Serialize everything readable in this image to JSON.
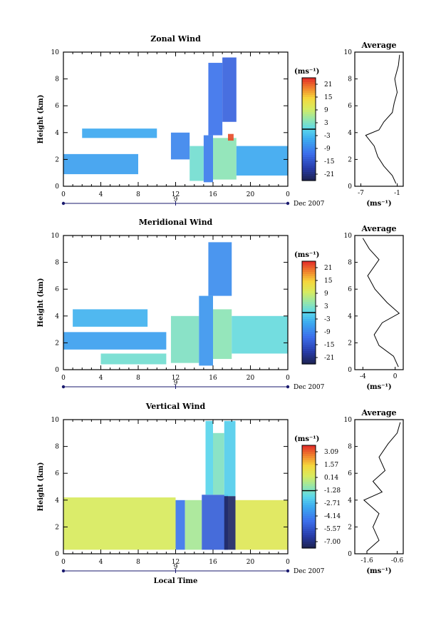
{
  "chart_data": [
    {
      "type": "heatmap",
      "title": "Zonal Wind",
      "xlabel": "",
      "ylabel": "Height (km)",
      "xticks": [
        "0",
        "4",
        "8",
        "12",
        "16",
        "20",
        "0"
      ],
      "xlim": [
        0,
        24
      ],
      "yticks": [
        "0",
        "2",
        "4",
        "6",
        "8",
        "10"
      ],
      "ylim": [
        0,
        10
      ],
      "day_label": "9",
      "date_label": "Dec 2007",
      "colorbar": {
        "unit": "(ms⁻¹)",
        "ticks": [
          "21",
          "15",
          "9",
          "3",
          "-3",
          "-9",
          "-15",
          "-21"
        ],
        "range": [
          -24,
          24
        ],
        "zero_line": 0
      },
      "cells": [
        {
          "x0": 0,
          "x1": 8,
          "y0": 0.9,
          "y1": 2.4,
          "v": -6
        },
        {
          "x0": 2,
          "x1": 10,
          "y0": 3.6,
          "y1": 4.3,
          "v": -5
        },
        {
          "x0": 11.5,
          "x1": 13.5,
          "y0": 2.0,
          "y1": 4.0,
          "v": -9
        },
        {
          "x0": 13.5,
          "x1": 15,
          "y0": 0.4,
          "y1": 3.0,
          "v": 2
        },
        {
          "x0": 15,
          "x1": 16,
          "y0": 0.3,
          "y1": 3.8,
          "v": -10
        },
        {
          "x0": 16,
          "x1": 18.5,
          "y0": 0.5,
          "y1": 3.6,
          "v": 4
        },
        {
          "x0": 15.5,
          "x1": 17,
          "y0": 3.8,
          "y1": 9.2,
          "v": -11
        },
        {
          "x0": 17,
          "x1": 18.5,
          "y0": 4.8,
          "y1": 9.6,
          "v": -13
        },
        {
          "x0": 17.6,
          "x1": 18.2,
          "y0": 3.4,
          "y1": 3.9,
          "v": 22
        },
        {
          "x0": 18.5,
          "x1": 24,
          "y0": 0.8,
          "y1": 3.0,
          "v": -5
        }
      ],
      "average": {
        "title": "Average",
        "xlabel": "(ms⁻¹)",
        "xticks": [
          "-7",
          "-1"
        ],
        "xlim": [
          -8,
          0
        ],
        "yticks": [
          "0",
          "2",
          "4",
          "6",
          "8",
          "10"
        ],
        "ylim": [
          0,
          10
        ],
        "profile": [
          [
            -1.2,
            0.2
          ],
          [
            -1.8,
            0.8
          ],
          [
            -3.2,
            1.5
          ],
          [
            -4.2,
            2.2
          ],
          [
            -4.8,
            3.0
          ],
          [
            -6.2,
            3.8
          ],
          [
            -4.0,
            4.2
          ],
          [
            -3.2,
            4.8
          ],
          [
            -1.8,
            5.5
          ],
          [
            -1.5,
            6.2
          ],
          [
            -1.0,
            7.0
          ],
          [
            -1.4,
            8.0
          ],
          [
            -0.8,
            9.0
          ],
          [
            -0.6,
            9.8
          ]
        ]
      }
    },
    {
      "type": "heatmap",
      "title": "Meridional Wind",
      "xlabel": "",
      "ylabel": "Height (km)",
      "xticks": [
        "0",
        "4",
        "8",
        "12",
        "16",
        "20",
        "0"
      ],
      "xlim": [
        0,
        24
      ],
      "yticks": [
        "0",
        "2",
        "4",
        "6",
        "8",
        "10"
      ],
      "ylim": [
        0,
        10
      ],
      "day_label": "9",
      "date_label": "Dec 2007",
      "colorbar": {
        "unit": "(ms⁻¹)",
        "ticks": [
          "21",
          "15",
          "9",
          "3",
          "-3",
          "-9",
          "-15",
          "-21"
        ],
        "range": [
          -24,
          24
        ],
        "zero_line": 0
      },
      "cells": [
        {
          "x0": 0,
          "x1": 11,
          "y0": 1.5,
          "y1": 2.8,
          "v": -6
        },
        {
          "x0": 1,
          "x1": 9,
          "y0": 3.2,
          "y1": 4.5,
          "v": -4
        },
        {
          "x0": 4,
          "x1": 11,
          "y0": 0.4,
          "y1": 1.2,
          "v": 2
        },
        {
          "x0": 11.5,
          "x1": 14.5,
          "y0": 0.5,
          "y1": 4.0,
          "v": 3
        },
        {
          "x0": 14.5,
          "x1": 16,
          "y0": 0.3,
          "y1": 5.5,
          "v": -7
        },
        {
          "x0": 16,
          "x1": 18,
          "y0": 0.8,
          "y1": 4.5,
          "v": 4
        },
        {
          "x0": 15.5,
          "x1": 18,
          "y0": 5.5,
          "y1": 9.5,
          "v": -8
        },
        {
          "x0": 18,
          "x1": 24,
          "y0": 1.2,
          "y1": 4.0,
          "v": 1
        }
      ],
      "average": {
        "title": "Average",
        "xlabel": "(ms⁻¹)",
        "xticks": [
          "-4",
          "0"
        ],
        "xlim": [
          -5,
          1
        ],
        "yticks": [
          "0",
          "2",
          "4",
          "6",
          "8",
          "10"
        ],
        "ylim": [
          0,
          10
        ],
        "profile": [
          [
            0.4,
            0.2
          ],
          [
            -0.2,
            1.0
          ],
          [
            -2.0,
            1.8
          ],
          [
            -2.6,
            2.6
          ],
          [
            -1.6,
            3.5
          ],
          [
            0.5,
            4.2
          ],
          [
            -1.0,
            5.0
          ],
          [
            -2.5,
            6.0
          ],
          [
            -3.4,
            7.0
          ],
          [
            -2.0,
            8.2
          ],
          [
            -3.2,
            9.0
          ],
          [
            -4.0,
            9.8
          ]
        ]
      }
    },
    {
      "type": "heatmap",
      "title": "Vertical Wind",
      "xlabel": "Local Time",
      "ylabel": "Height (km)",
      "xticks": [
        "0",
        "4",
        "8",
        "12",
        "16",
        "20",
        "0"
      ],
      "xlim": [
        0,
        24
      ],
      "yticks": [
        "0",
        "2",
        "4",
        "6",
        "8",
        "10"
      ],
      "ylim": [
        0,
        10
      ],
      "day_label": "9",
      "date_label": "Dec 2007",
      "colorbar": {
        "unit": "(ms⁻¹)",
        "ticks": [
          "3.09",
          "1.57",
          "0.14",
          "-1.28",
          "-2.71",
          "-4.14",
          "-5.57",
          "-7.00"
        ],
        "range": [
          -7.7,
          3.8
        ],
        "zero_line": -1.28
      },
      "cells": [
        {
          "x0": 0,
          "x1": 12,
          "y0": 0.3,
          "y1": 4.2,
          "v": 0.4
        },
        {
          "x0": 12,
          "x1": 13,
          "y0": 0.3,
          "y1": 4.0,
          "v": -4.5
        },
        {
          "x0": 13,
          "x1": 14.8,
          "y0": 0.3,
          "y1": 4.0,
          "v": -0.5
        },
        {
          "x0": 14.8,
          "x1": 17.6,
          "y0": 0.3,
          "y1": 4.4,
          "v": -5.2
        },
        {
          "x0": 15.2,
          "x1": 16,
          "y0": 4.4,
          "y1": 9.9,
          "v": -2.0
        },
        {
          "x0": 16,
          "x1": 17.2,
          "y0": 4.4,
          "y1": 9.0,
          "v": -1.2
        },
        {
          "x0": 17.2,
          "x1": 18.4,
          "y0": 0.3,
          "y1": 4.3,
          "v": -7.4
        },
        {
          "x0": 17.2,
          "x1": 18.4,
          "y0": 4.3,
          "y1": 9.9,
          "v": -2.2
        },
        {
          "x0": 18.4,
          "x1": 24,
          "y0": 0.3,
          "y1": 4.0,
          "v": 0.6
        }
      ],
      "average": {
        "title": "Average",
        "xlabel": "(ms⁻¹)",
        "xticks": [
          "-1.6",
          "-0.6"
        ],
        "xlim": [
          -2.0,
          -0.4
        ],
        "yticks": [
          "0",
          "2",
          "4",
          "6",
          "8",
          "10"
        ],
        "ylim": [
          0,
          10
        ],
        "profile": [
          [
            -1.6,
            0.2
          ],
          [
            -1.2,
            1.0
          ],
          [
            -1.4,
            2.0
          ],
          [
            -1.2,
            3.0
          ],
          [
            -1.7,
            4.0
          ],
          [
            -1.1,
            4.6
          ],
          [
            -1.4,
            5.4
          ],
          [
            -1.0,
            6.2
          ],
          [
            -1.2,
            7.2
          ],
          [
            -0.9,
            8.2
          ],
          [
            -0.6,
            9.0
          ],
          [
            -0.5,
            9.8
          ]
        ]
      }
    }
  ]
}
